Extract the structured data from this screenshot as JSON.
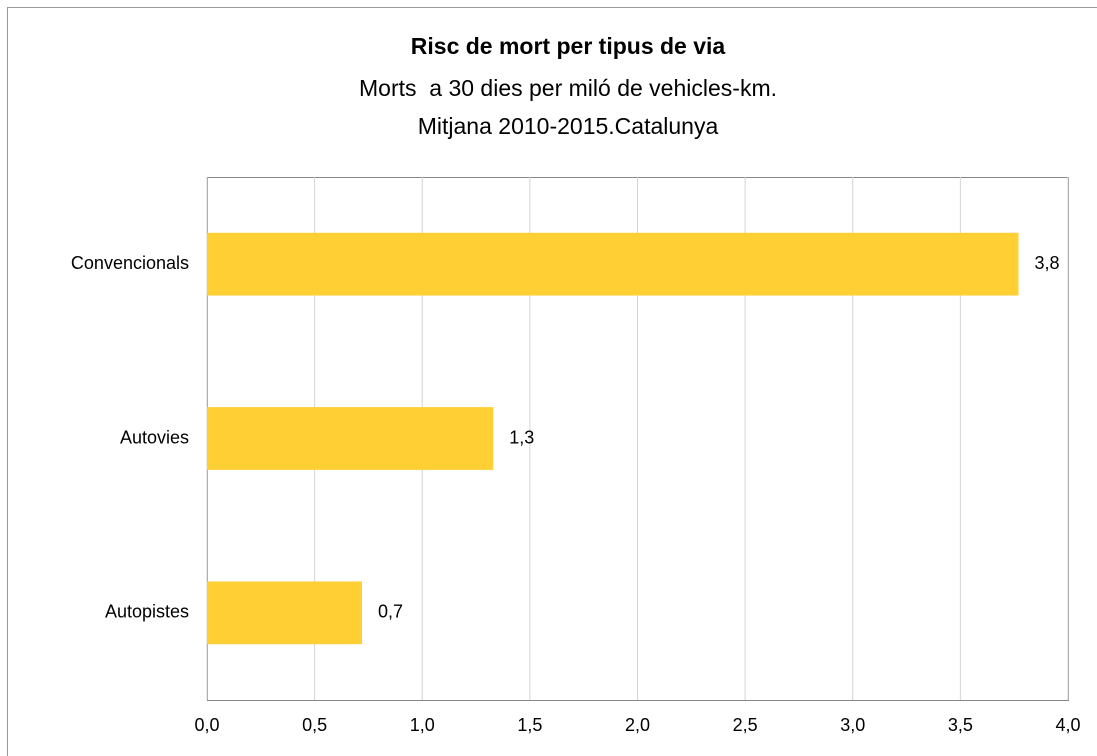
{
  "chart_data": {
    "type": "barh",
    "title": "Risc de mort per tipus de via",
    "subtitle": [
      "Morts  a 30 dies per miló de vehicles-km.",
      "Mitjana 2010-2015.Catalunya"
    ],
    "categories": [
      "Convencionals",
      "Autovies",
      "Autopistes"
    ],
    "values": [
      3.77,
      1.33,
      0.72
    ],
    "value_labels": [
      "3,8",
      "1,3",
      "0,7"
    ],
    "color": "#ffcf33",
    "xlim": [
      0,
      4
    ],
    "xticks": [
      {
        "value": 0,
        "label": "0,0"
      },
      {
        "value": 0.5,
        "label": "0,5"
      },
      {
        "value": 1,
        "label": "1,0"
      },
      {
        "value": 1.5,
        "label": "1,5"
      },
      {
        "value": 2,
        "label": "2,0"
      },
      {
        "value": 2.5,
        "label": "2,5"
      },
      {
        "value": 3,
        "label": "3,0"
      },
      {
        "value": 3.5,
        "label": "3,5"
      },
      {
        "value": 4,
        "label": "4,0"
      }
    ],
    "grid": true
  }
}
